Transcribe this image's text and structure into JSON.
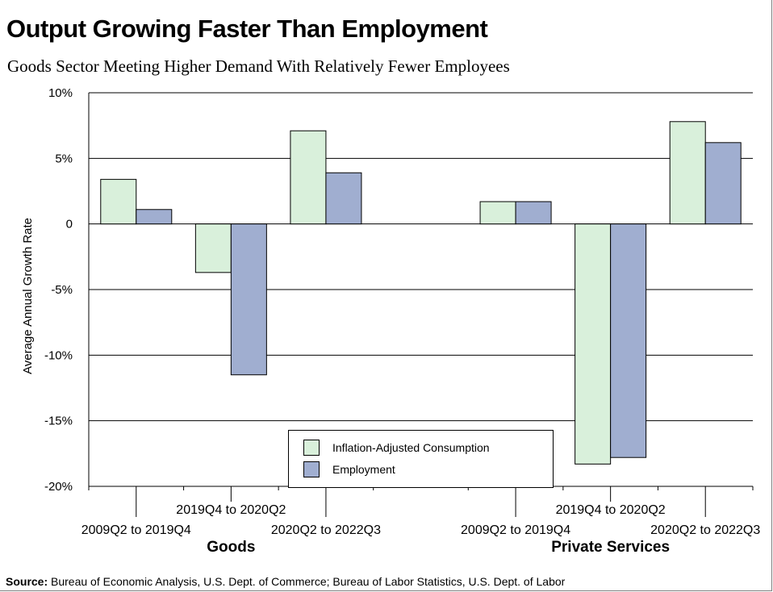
{
  "title": "Output Growing Faster Than Employment",
  "subtitle": "Goods Sector Meeting Higher Demand With Relatively Fewer Employees",
  "source": {
    "label": "Source:",
    "text": " Bureau of Economic Analysis, U.S. Dept. of Commerce; Bureau of Labor Statistics, U.S. Dept. of Labor"
  },
  "colors": {
    "consumption": "#d9f0db",
    "employment": "#a0aed0",
    "grid": "#000000"
  },
  "chart_data": {
    "type": "bar",
    "ylabel": "Average Annual Growth Rate",
    "ylim": [
      -20,
      10
    ],
    "yticks": [
      10,
      5,
      0,
      -5,
      -10,
      -15,
      -20
    ],
    "ytick_labels": [
      "10%",
      "5%",
      "0",
      "-5%",
      "-10%",
      "-15%",
      "-20%"
    ],
    "grid": true,
    "legend_position": "bottom-center",
    "groups": [
      {
        "name": "Goods",
        "categories": [
          "2009Q2 to 2019Q4",
          "2019Q4 to 2020Q2",
          "2020Q2 to 2022Q3"
        ]
      },
      {
        "name": "Private Services",
        "categories": [
          "2009Q2 to 2019Q4",
          "2019Q4 to 2020Q2",
          "2020Q2 to 2022Q3"
        ]
      }
    ],
    "series": [
      {
        "name": "Inflation-Adjusted Consumption",
        "values": [
          3.4,
          -3.7,
          7.1,
          1.7,
          -18.3,
          7.8
        ]
      },
      {
        "name": "Employment",
        "values": [
          1.1,
          -11.5,
          3.9,
          1.7,
          -17.8,
          6.2
        ]
      }
    ]
  }
}
